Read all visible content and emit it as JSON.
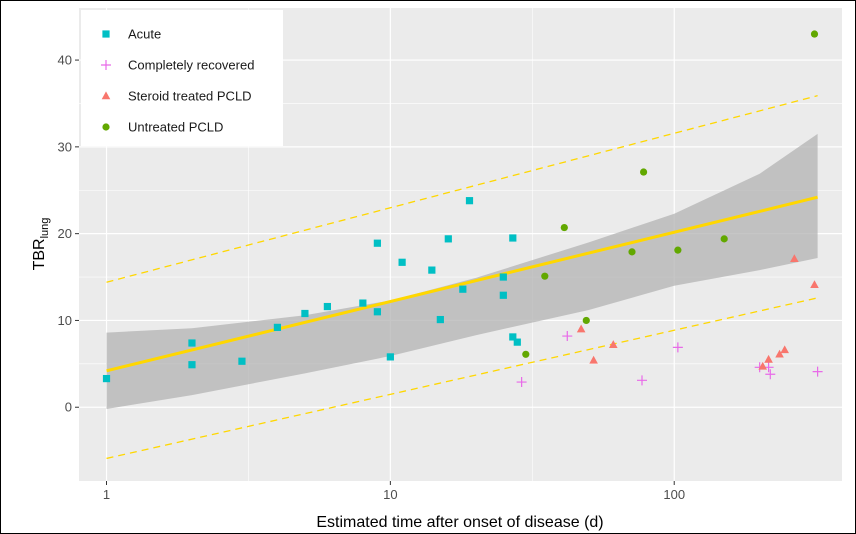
{
  "chart_data": {
    "type": "scatter",
    "title": "",
    "xlabel": "Estimated time after onset of disease (d)",
    "ylabel_main": "TBR",
    "ylabel_sub": "lung",
    "x_scale": "log",
    "xlim": [
      0.8,
      390
    ],
    "ylim": [
      -8.5,
      46
    ],
    "x_ticks": [
      1,
      10,
      100
    ],
    "x_tick_labels": [
      "1",
      "10",
      "100"
    ],
    "y_ticks": [
      0,
      10,
      20,
      30,
      40
    ],
    "y_tick_labels": [
      "0",
      "10",
      "20",
      "30",
      "40"
    ],
    "grid": true,
    "legend_position": "top-left",
    "series": [
      {
        "name": "Acute",
        "marker": "square",
        "color": "#00bfc4",
        "points": [
          [
            1,
            3.3
          ],
          [
            2,
            7.4
          ],
          [
            2,
            4.9
          ],
          [
            3,
            5.3
          ],
          [
            4,
            9.2
          ],
          [
            5,
            10.8
          ],
          [
            6,
            11.6
          ],
          [
            8,
            12.0
          ],
          [
            9,
            18.9
          ],
          [
            9,
            11.0
          ],
          [
            10,
            5.8
          ],
          [
            11,
            16.7
          ],
          [
            14,
            15.8
          ],
          [
            15,
            10.1
          ],
          [
            16,
            19.4
          ],
          [
            18,
            13.6
          ],
          [
            19,
            23.8
          ],
          [
            25,
            15.0
          ],
          [
            25,
            12.9
          ],
          [
            27,
            19.5
          ],
          [
            27,
            8.1
          ],
          [
            28,
            7.5
          ]
        ]
      },
      {
        "name": "Completely recovered",
        "marker": "plus",
        "color": "#e86ae8",
        "points": [
          [
            29,
            2.9
          ],
          [
            42,
            8.2
          ],
          [
            77,
            3.1
          ],
          [
            103,
            6.9
          ],
          [
            200,
            4.6
          ],
          [
            215,
            4.6
          ],
          [
            218,
            3.8
          ],
          [
            320,
            4.1
          ]
        ]
      },
      {
        "name": "Steroid treated PCLD",
        "marker": "triangle",
        "color": "#f8766d",
        "points": [
          [
            47,
            9.0
          ],
          [
            52,
            5.4
          ],
          [
            61,
            7.2
          ],
          [
            205,
            4.7
          ],
          [
            215,
            5.5
          ],
          [
            235,
            6.1
          ],
          [
            245,
            6.6
          ],
          [
            265,
            17.1
          ],
          [
            312,
            14.1
          ]
        ]
      },
      {
        "name": "Untreated PCLD",
        "marker": "circle",
        "color": "#62a800",
        "points": [
          [
            30,
            6.1
          ],
          [
            35,
            15.1
          ],
          [
            41,
            20.7
          ],
          [
            49,
            10.0
          ],
          [
            71,
            17.9
          ],
          [
            78,
            27.1
          ],
          [
            103,
            18.1
          ],
          [
            150,
            19.4
          ],
          [
            312,
            43.0
          ]
        ]
      }
    ],
    "regression": {
      "color": "#ffd700",
      "ribbon_color": "#b3b3b3",
      "fit": [
        [
          1,
          4.2
        ],
        [
          320,
          24.2
        ]
      ],
      "confidence_band_upper": [
        [
          1,
          8.6
        ],
        [
          2,
          9.1
        ],
        [
          5,
          10.6
        ],
        [
          10,
          12.3
        ],
        [
          20,
          14.9
        ],
        [
          50,
          19.0
        ],
        [
          100,
          22.3
        ],
        [
          200,
          26.9
        ],
        [
          320,
          31.5
        ]
      ],
      "confidence_band_lower": [
        [
          1,
          -0.2
        ],
        [
          2,
          1.4
        ],
        [
          5,
          3.9
        ],
        [
          10,
          5.9
        ],
        [
          20,
          8.3
        ],
        [
          50,
          11.2
        ],
        [
          100,
          14.0
        ],
        [
          200,
          15.8
        ],
        [
          320,
          17.2
        ]
      ],
      "prediction_upper": [
        [
          1,
          14.4
        ],
        [
          320,
          35.9
        ]
      ],
      "prediction_lower": [
        [
          1,
          -5.9
        ],
        [
          320,
          12.6
        ]
      ]
    }
  }
}
